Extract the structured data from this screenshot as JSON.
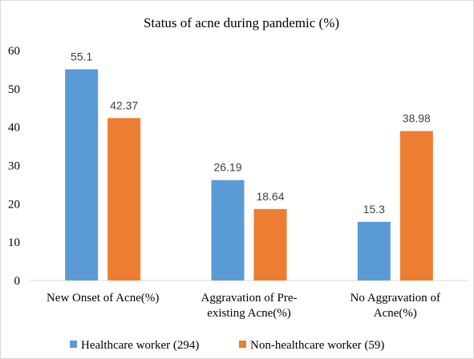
{
  "chart_data": {
    "type": "bar",
    "title": "Status of acne during pandemic (%)",
    "categories": [
      [
        "New Onset of Acne(%)"
      ],
      [
        "Aggravation of Pre-",
        "existing Acne(%)"
      ],
      [
        "No Aggravation of",
        "Acne(%)"
      ]
    ],
    "series": [
      {
        "name": "Healthcare worker (294)",
        "values": [
          55.1,
          26.19,
          15.3
        ],
        "labels": [
          "55.1",
          "26.19",
          "15.3"
        ],
        "color": "#5b9bd5"
      },
      {
        "name": "Non-healthcare worker (59)",
        "values": [
          42.37,
          18.64,
          38.98
        ],
        "labels": [
          "42.37",
          "18.64",
          "38.98"
        ],
        "color": "#ed7d31"
      }
    ],
    "ylim": [
      0,
      60
    ],
    "yticks": [
      "0",
      "10",
      "20",
      "30",
      "40",
      "50",
      "60"
    ],
    "grid": false,
    "legend": "bottom"
  }
}
